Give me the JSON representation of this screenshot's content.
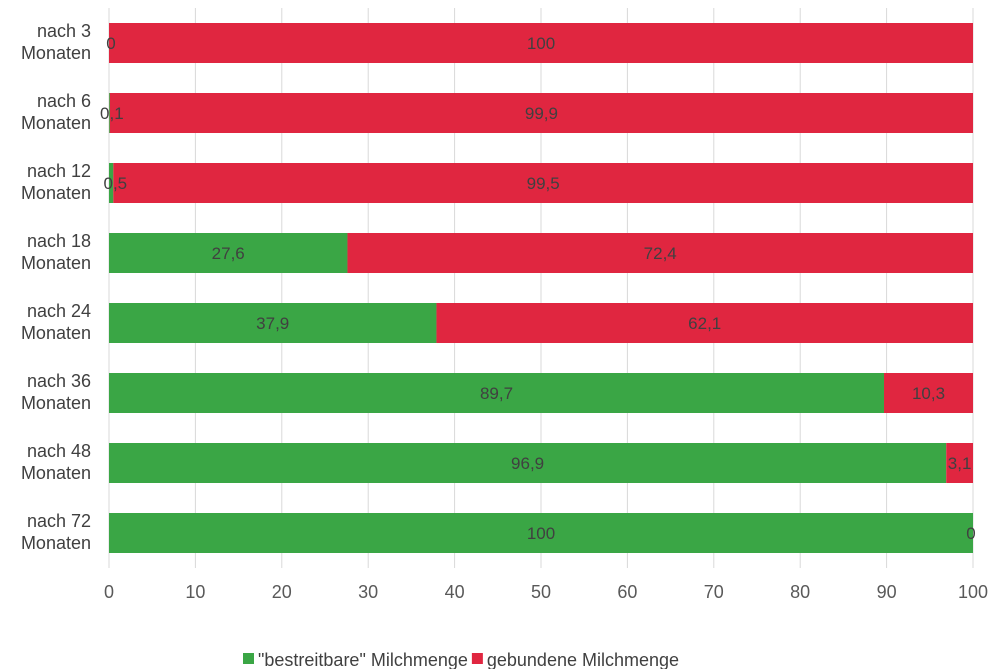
{
  "chart_data": {
    "type": "bar",
    "orientation": "horizontal",
    "stacked": true,
    "categories": [
      [
        "nach 3",
        "Monaten"
      ],
      [
        "nach 6",
        "Monaten"
      ],
      [
        "nach 12",
        "Monaten"
      ],
      [
        "nach 18",
        "Monaten"
      ],
      [
        "nach 24",
        "Monaten"
      ],
      [
        "nach 36",
        "Monaten"
      ],
      [
        "nach 48",
        "Monaten"
      ],
      [
        "nach 72",
        "Monaten"
      ]
    ],
    "series": [
      {
        "name": "\"bestreitbare\" Milchmenge",
        "color": "#3aa645",
        "values": [
          0,
          0.1,
          0.5,
          27.6,
          37.9,
          89.7,
          96.9,
          100
        ],
        "labels": [
          "0",
          "0,1",
          "0,5",
          "27,6",
          "37,9",
          "89,7",
          "96,9",
          "100"
        ]
      },
      {
        "name": "gebundene Milchmenge",
        "color": "#e02640",
        "values": [
          100,
          99.9,
          99.5,
          72.4,
          62.1,
          10.3,
          3.1,
          0
        ],
        "labels": [
          "100",
          "99,9",
          "99,5",
          "72,4",
          "62,1",
          "10,3",
          "3,1",
          "0"
        ]
      }
    ],
    "xlim": [
      0,
      100
    ],
    "xticks": [
      "0",
      "10",
      "20",
      "30",
      "40",
      "50",
      "60",
      "70",
      "80",
      "90",
      "100"
    ],
    "grid": true,
    "legend_position": "bottom"
  }
}
